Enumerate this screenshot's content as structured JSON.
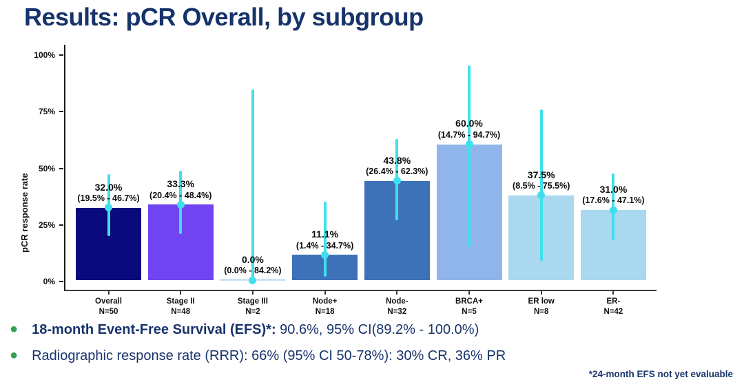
{
  "slide": {
    "title": "Results: pCR Overall, by subgroup"
  },
  "chart_data": {
    "type": "bar",
    "title": "",
    "xlabel": "",
    "ylabel": "pCR response rate",
    "ylim": [
      0,
      100
    ],
    "grid": false,
    "legend": "none",
    "yticks": [
      {
        "value": 0,
        "label": "0%"
      },
      {
        "value": 25,
        "label": "25%"
      },
      {
        "value": 50,
        "label": "50%"
      },
      {
        "value": 75,
        "label": "75%"
      },
      {
        "value": 100,
        "label": "100%"
      }
    ],
    "error_bar_color": "#3fdfee",
    "bars": [
      {
        "category": "Overall",
        "n_label": "N=50",
        "value": 32.0,
        "ci_low": 19.5,
        "ci_high": 46.7,
        "value_label": "32.0%",
        "ci_label": "(19.5% - 46.7%)",
        "color": "#0a0a7d"
      },
      {
        "category": "Stage II",
        "n_label": "N=48",
        "value": 33.3,
        "ci_low": 20.4,
        "ci_high": 48.4,
        "value_label": "33.3%",
        "ci_label": "(20.4% - 48.4%)",
        "color": "#7144f2"
      },
      {
        "category": "Stage III",
        "n_label": "N=2",
        "value": 0.0,
        "ci_low": 0.0,
        "ci_high": 84.2,
        "value_label": "0.0%",
        "ci_label": "(0.0% - 84.2%)",
        "color": "#c9e3f2"
      },
      {
        "category": "Node+",
        "n_label": "N=18",
        "value": 11.1,
        "ci_low": 1.4,
        "ci_high": 34.7,
        "value_label": "11.1%",
        "ci_label": "(1.4% - 34.7%)",
        "color": "#3d72b8"
      },
      {
        "category": "Node-",
        "n_label": "N=32",
        "value": 43.8,
        "ci_low": 26.4,
        "ci_high": 62.3,
        "value_label": "43.8%",
        "ci_label": "(26.4% - 62.3%)",
        "color": "#3d72b8"
      },
      {
        "category": "BRCA+",
        "n_label": "N=5",
        "value": 60.0,
        "ci_low": 14.7,
        "ci_high": 94.7,
        "value_label": "60.0%",
        "ci_label": "(14.7% - 94.7%)",
        "color": "#90b5ea"
      },
      {
        "category": "ER low",
        "n_label": "N=8",
        "value": 37.5,
        "ci_low": 8.5,
        "ci_high": 75.5,
        "value_label": "37.5%",
        "ci_label": "(8.5% - 75.5%)",
        "color": "#a9d8ef"
      },
      {
        "category": "ER-",
        "n_label": "N=42",
        "value": 31.0,
        "ci_low": 17.6,
        "ci_high": 47.1,
        "value_label": "31.0%",
        "ci_label": "(17.6% - 47.1%)",
        "color": "#a9d8ef"
      }
    ]
  },
  "bullets": [
    {
      "bold": "18-month Event-Free Survival (EFS)*:",
      "text": " 90.6%, 95% CI(89.2% - 100.0%)"
    },
    {
      "bold": "",
      "text": "Radiographic response rate (RRR): 66% (95% CI 50-78%): 30% CR, 36% PR"
    }
  ],
  "footnote": "*24-month EFS not yet evaluable",
  "colors": {
    "title_text": "#17336b",
    "bullet_dot": "#35a04e",
    "error_bar": "#3fdfee",
    "axis": "#3d3d3d"
  }
}
